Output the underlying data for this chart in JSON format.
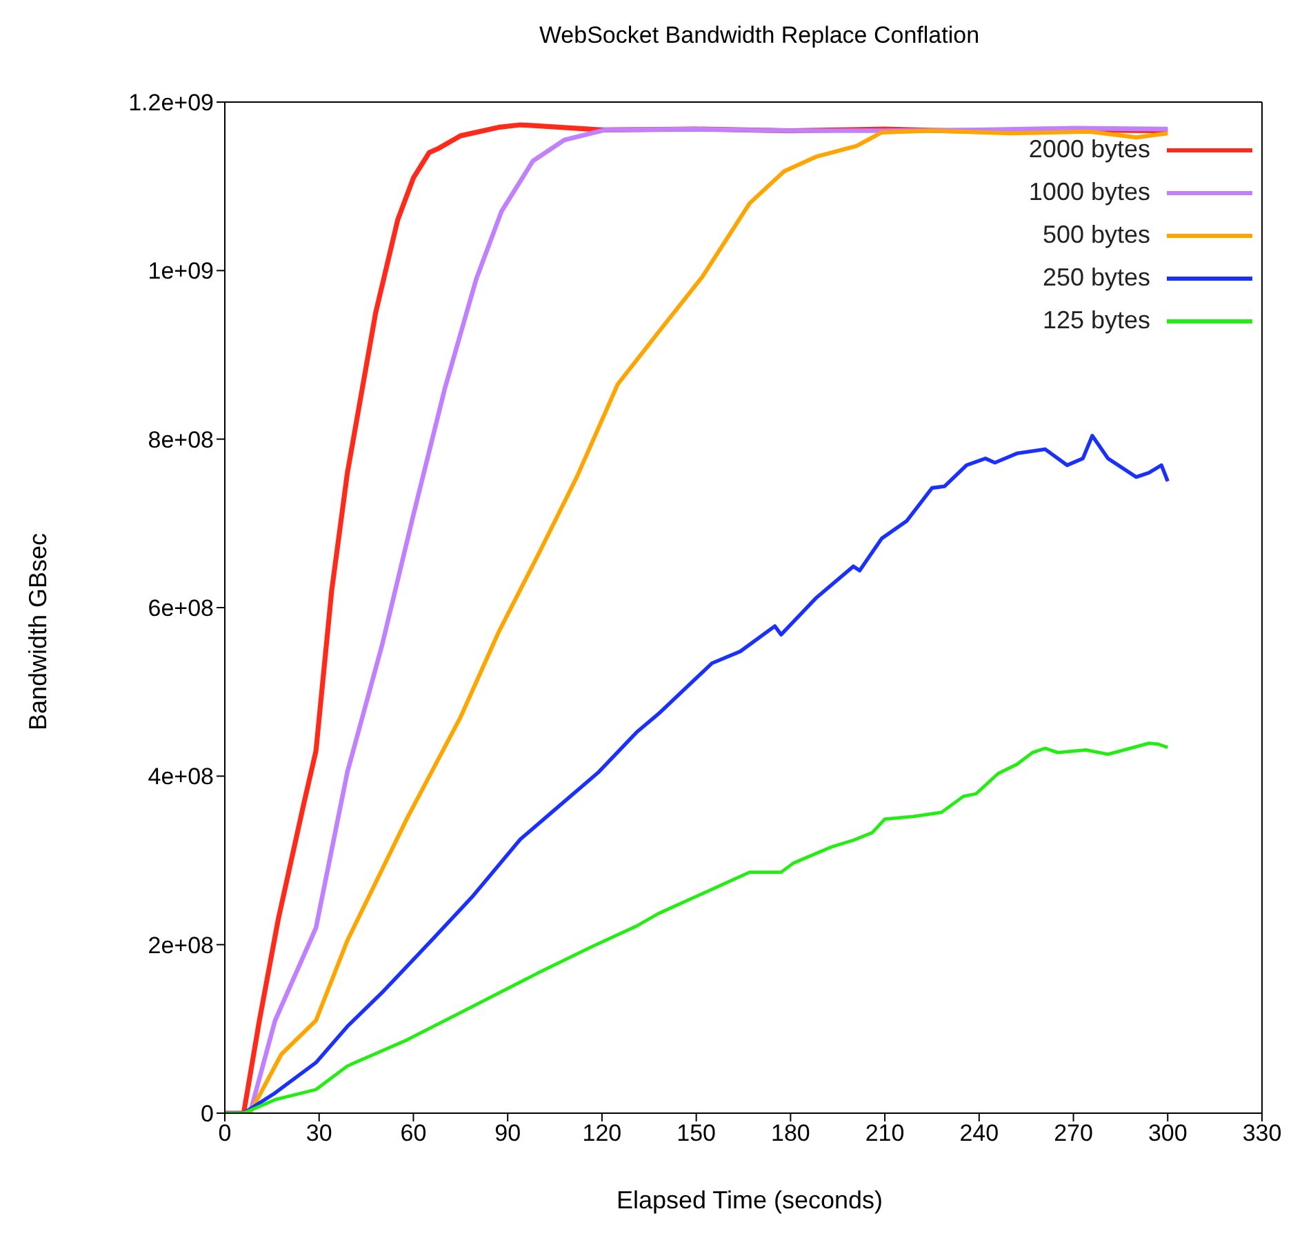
{
  "chart_data": {
    "type": "line",
    "title": "WebSocket Bandwidth Replace Conflation",
    "xlabel": "Elapsed Time (seconds)",
    "ylabel": "Bandwidth GBsec",
    "xlim": [
      0,
      330
    ],
    "xticks": [
      0,
      30,
      60,
      90,
      120,
      150,
      180,
      210,
      240,
      270,
      300,
      330
    ],
    "ylim": [
      0,
      1200000000
    ],
    "yticks": [
      0,
      {
        "value": 200000000,
        "label": "2e+08"
      },
      {
        "value": 400000000,
        "label": "4e+08"
      },
      {
        "value": 600000000,
        "label": "6e+08"
      },
      {
        "value": 800000000,
        "label": "8e+08"
      },
      {
        "value": 1000000000,
        "label": "1e+09"
      },
      {
        "value": 1200000000,
        "label": "1.2e+09"
      }
    ],
    "legend": "top right",
    "series": [
      {
        "name": "2000 bytes",
        "color": "#ff2a1a",
        "x": [
          0,
          6,
          11,
          17,
          25,
          29,
          34,
          39,
          48,
          55,
          60,
          65,
          68,
          75,
          87,
          94,
          120,
          150,
          180,
          210,
          240,
          270,
          300
        ],
        "values": [
          0,
          0,
          110000000,
          230000000,
          365000000,
          430000000,
          620000000,
          760000000,
          950000000,
          1060000000,
          1110000000,
          1140000000,
          1145000000,
          1160000000,
          1170000000,
          1173000000,
          1167000000,
          1168000000,
          1166000000,
          1168000000,
          1165000000,
          1167000000,
          1166000000
        ]
      },
      {
        "name": "1000 bytes",
        "color": "#c080ff",
        "x": [
          0,
          8,
          16,
          29,
          39,
          50,
          60,
          70,
          80,
          88,
          98,
          108,
          121,
          150,
          180,
          210,
          240,
          270,
          300
        ],
        "values": [
          0,
          0,
          110000000,
          220000000,
          405000000,
          555000000,
          710000000,
          860000000,
          990000000,
          1070000000,
          1130000000,
          1155000000,
          1167000000,
          1168000000,
          1166000000,
          1166000000,
          1167000000,
          1169000000,
          1168000000
        ]
      },
      {
        "name": "500 bytes",
        "color": "#ffa500",
        "x": [
          0,
          8,
          18,
          29,
          39,
          58,
          75,
          87,
          100,
          112,
          125,
          138,
          152,
          167,
          178,
          188,
          201,
          209,
          225,
          250,
          275,
          290,
          300
        ],
        "values": [
          0,
          0,
          70000000,
          110000000,
          205000000,
          350000000,
          470000000,
          570000000,
          665000000,
          755000000,
          865000000,
          927000000,
          993000000,
          1080000000,
          1118000000,
          1135000000,
          1148000000,
          1164000000,
          1166000000,
          1163000000,
          1165000000,
          1158000000,
          1163000000
        ]
      },
      {
        "name": "250 bytes",
        "color": "#1a30ff",
        "x": [
          0,
          6,
          16,
          29,
          39,
          50,
          66,
          79,
          94,
          104,
          119,
          131,
          138,
          155,
          164,
          175,
          177,
          188,
          200,
          202,
          209,
          217,
          225,
          229,
          236,
          242,
          245,
          252,
          261,
          268,
          273,
          276,
          281,
          290,
          294,
          298,
          300
        ],
        "values": [
          0,
          0,
          24000000,
          60000000,
          103000000,
          143000000,
          206000000,
          258000000,
          325000000,
          357000000,
          405000000,
          452000000,
          474000000,
          534000000,
          548000000,
          578000000,
          568000000,
          611000000,
          649000000,
          644000000,
          682000000,
          703000000,
          742000000,
          744000000,
          769000000,
          777000000,
          772000000,
          783000000,
          788000000,
          769000000,
          777000000,
          804000000,
          777000000,
          755000000,
          760000000,
          769000000,
          750000000
        ]
      },
      {
        "name": "125 bytes",
        "color": "#22ee11",
        "x": [
          0,
          6,
          16,
          29,
          39,
          58,
          79,
          100,
          117,
          131,
          138,
          151,
          167,
          177,
          181,
          193,
          200,
          206,
          210,
          219,
          228,
          235,
          239,
          246,
          252,
          257,
          261,
          265,
          274,
          281,
          290,
          294,
          297,
          300
        ],
        "values": [
          0,
          0,
          16000000,
          28000000,
          56000000,
          87000000,
          127000000,
          167000000,
          198000000,
          222000000,
          237000000,
          259000000,
          286000000,
          286000000,
          297000000,
          316000000,
          324000000,
          333000000,
          349000000,
          352000000,
          357000000,
          376000000,
          379000000,
          403000000,
          414000000,
          428000000,
          433000000,
          428000000,
          431000000,
          426000000,
          435000000,
          439000000,
          438000000,
          434000000
        ]
      }
    ]
  }
}
